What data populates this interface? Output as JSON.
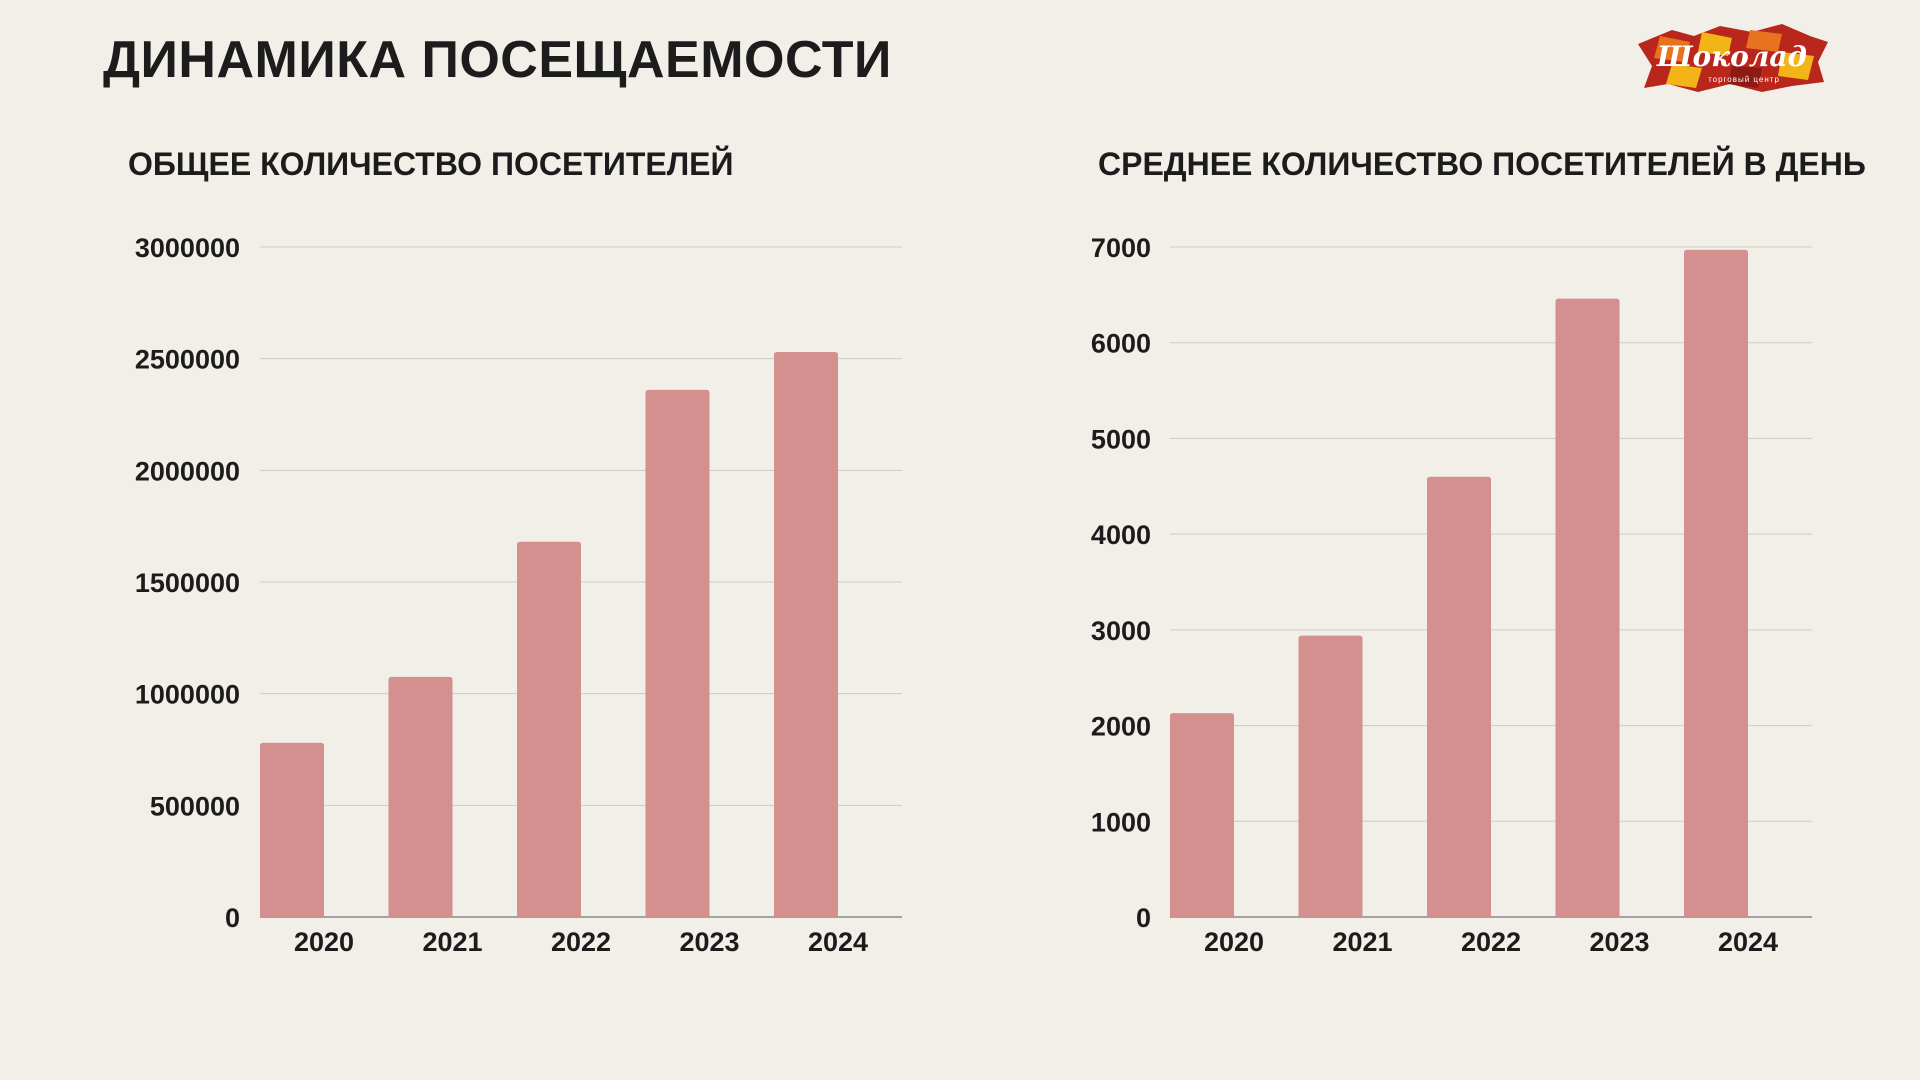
{
  "page": {
    "title": "ДИНАМИКА ПОСЕЩАЕМОСТИ",
    "background": "#f2eee8",
    "bar_color": "#d4908f"
  },
  "logo": {
    "text": "Шоколад",
    "subtext": "торговый центр",
    "colors": [
      "#b8261c",
      "#e8731f",
      "#f2b416",
      "#8e1a14"
    ]
  },
  "chart_data": [
    {
      "type": "bar",
      "title": "ОБЩЕЕ КОЛИЧЕСТВО ПОСЕТИТЕЛЕЙ",
      "categories": [
        "2020",
        "2021",
        "2022",
        "2023",
        "2024"
      ],
      "values": [
        780000,
        1075000,
        1680000,
        2360000,
        2530000
      ],
      "yticks": [
        "0",
        "500000",
        "1000000",
        "1500000",
        "2000000",
        "2500000",
        "3000000"
      ],
      "ylim": [
        0,
        3000000
      ],
      "grid": true,
      "legend": "none"
    },
    {
      "type": "bar",
      "title": "СРЕДНЕЕ КОЛИЧЕСТВО ПОСЕТИТЕЛЕЙ В ДЕНЬ",
      "categories": [
        "2020",
        "2021",
        "2022",
        "2023",
        "2024"
      ],
      "values": [
        2130,
        2940,
        4600,
        6460,
        6970
      ],
      "yticks": [
        "0",
        "1000",
        "2000",
        "3000",
        "4000",
        "5000",
        "6000",
        "7000"
      ],
      "ylim": [
        0,
        7000
      ],
      "grid": true,
      "legend": "none"
    }
  ]
}
